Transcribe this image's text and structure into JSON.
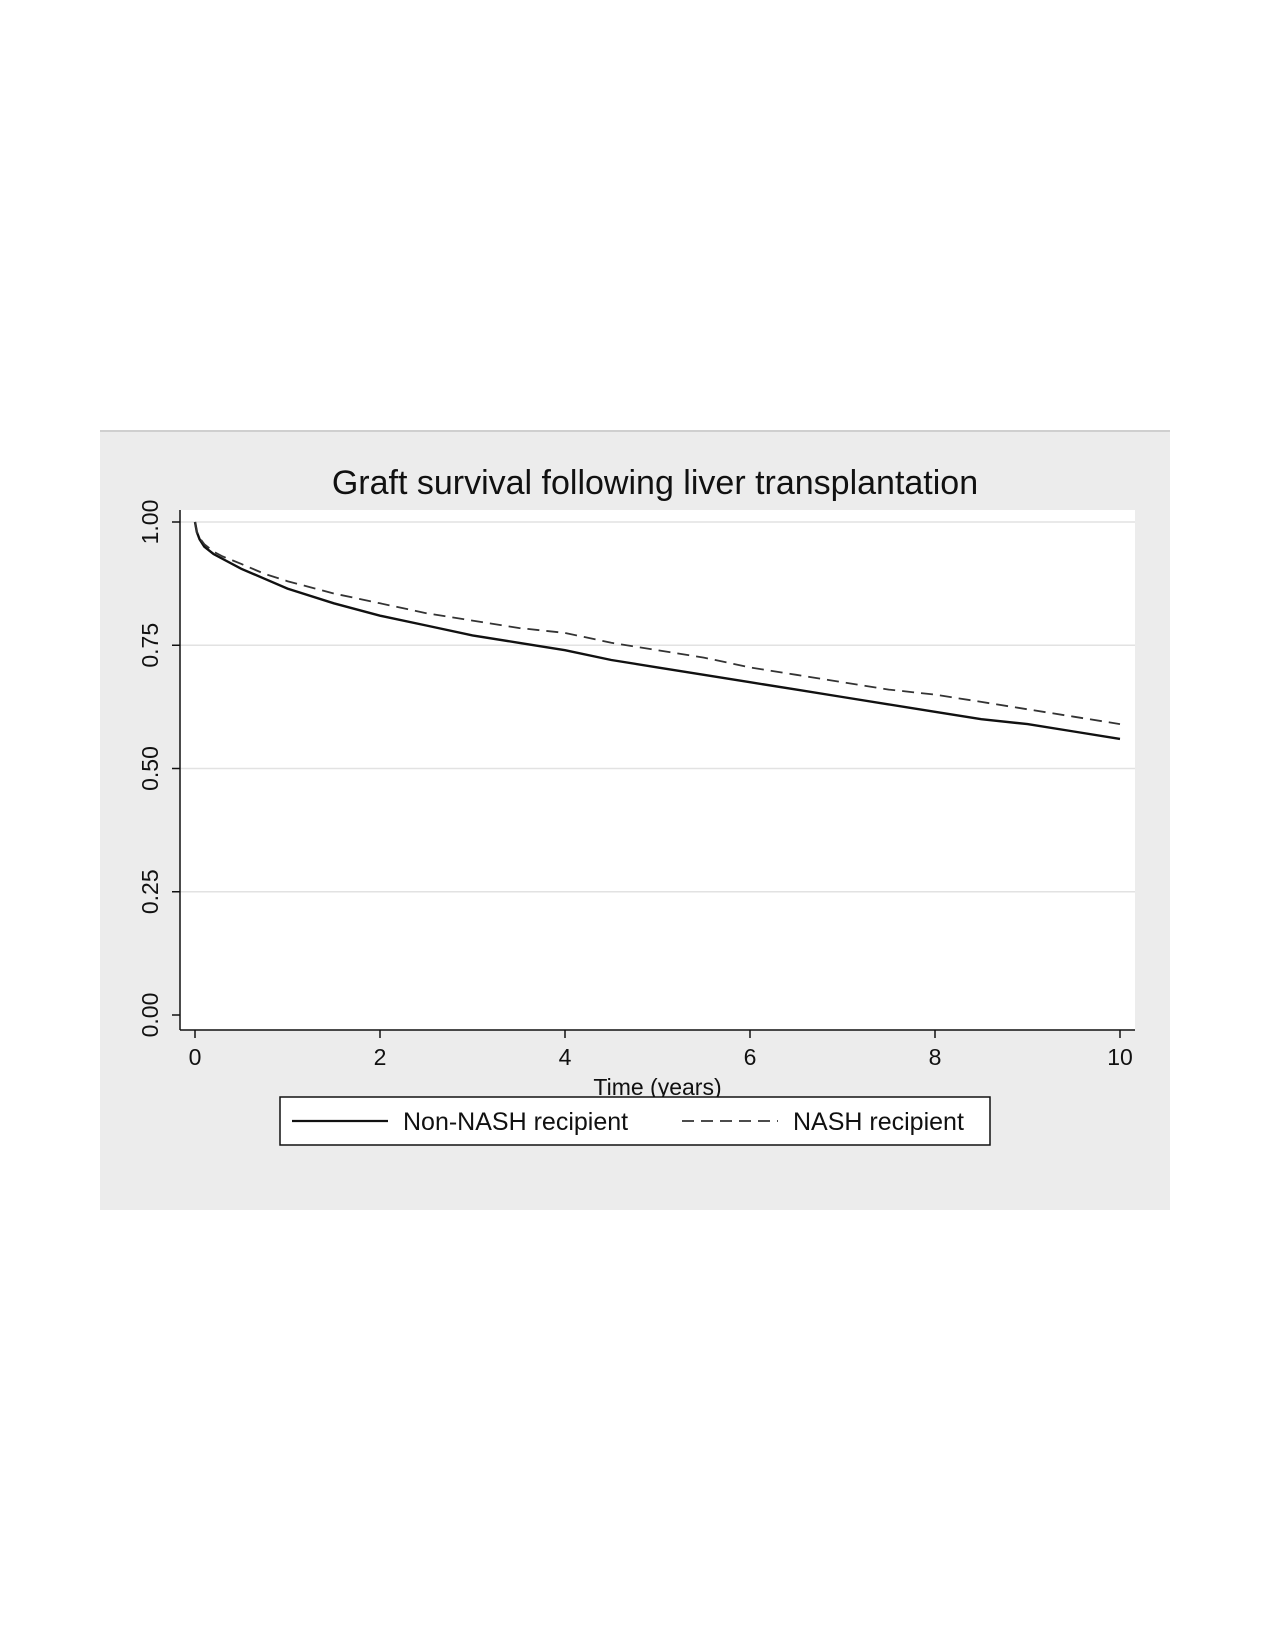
{
  "chart_data": {
    "type": "line",
    "title": "Graft survival following liver transplantation",
    "xlabel": "Time (years)",
    "ylabel": "",
    "xlim": [
      0,
      10
    ],
    "ylim": [
      0,
      1
    ],
    "x_ticks": [
      0,
      2,
      4,
      6,
      8,
      10
    ],
    "x_tick_labels": [
      "0",
      "2",
      "4",
      "6",
      "8",
      "10"
    ],
    "y_ticks": [
      0,
      0.25,
      0.5,
      0.75,
      1.0
    ],
    "y_tick_labels": [
      "0.00",
      "0.25",
      "0.50",
      "0.75",
      "1.00"
    ],
    "grid": "horizontal",
    "legend_position": "bottom",
    "series": [
      {
        "name": "Non-NASH recipient",
        "style": "solid",
        "color": "#111111",
        "x": [
          0,
          0.02,
          0.05,
          0.1,
          0.2,
          0.3,
          0.5,
          0.75,
          1,
          1.5,
          2,
          2.5,
          3,
          3.5,
          4,
          4.5,
          5,
          5.5,
          6,
          6.5,
          7,
          7.5,
          8,
          8.5,
          9,
          9.5,
          10
        ],
        "y": [
          1.0,
          0.98,
          0.965,
          0.95,
          0.935,
          0.925,
          0.905,
          0.885,
          0.865,
          0.835,
          0.81,
          0.79,
          0.77,
          0.755,
          0.74,
          0.72,
          0.705,
          0.69,
          0.675,
          0.66,
          0.645,
          0.63,
          0.615,
          0.6,
          0.59,
          0.575,
          0.56
        ]
      },
      {
        "name": "NASH recipient",
        "style": "dashed",
        "color": "#333333",
        "x": [
          0,
          0.02,
          0.05,
          0.1,
          0.2,
          0.3,
          0.5,
          0.75,
          1,
          1.5,
          2,
          2.5,
          3,
          3.5,
          4,
          4.5,
          5,
          5.5,
          6,
          6.5,
          7,
          7.5,
          8,
          8.5,
          9,
          9.5,
          10
        ],
        "y": [
          1.0,
          0.98,
          0.968,
          0.955,
          0.94,
          0.93,
          0.915,
          0.895,
          0.88,
          0.855,
          0.835,
          0.815,
          0.8,
          0.785,
          0.775,
          0.755,
          0.74,
          0.725,
          0.705,
          0.69,
          0.675,
          0.66,
          0.65,
          0.635,
          0.62,
          0.605,
          0.59
        ]
      }
    ]
  }
}
